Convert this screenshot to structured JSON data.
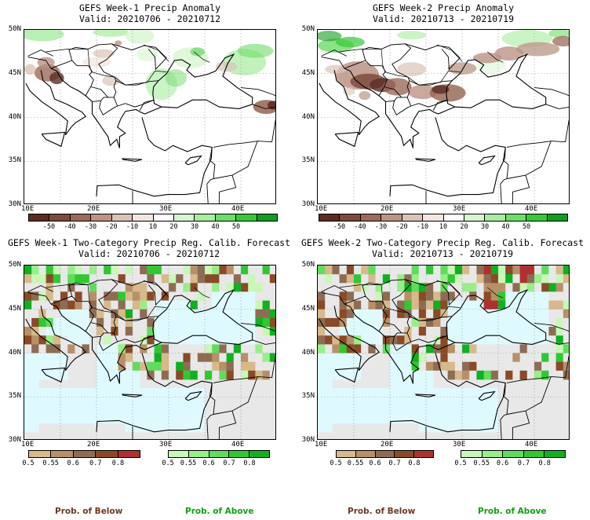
{
  "panels": [
    {
      "title": "GEFS Week-1 Precip Anomaly",
      "valid": "Valid: 20210706 - 20210712",
      "type": "anomaly"
    },
    {
      "title": "GEFS Week-2 Precip Anomaly",
      "valid": "Valid: 20210713 - 20210719",
      "type": "anomaly"
    },
    {
      "title": "GEFS Week-1 Two-Category Precip Reg. Calib. Forecast",
      "valid": "Valid: 20210706 - 20210712",
      "type": "prob"
    },
    {
      "title": "GEFS Week-2 Two-Category Precip Reg. Calib. Forecast",
      "valid": "Valid: 20210713 - 20210719",
      "type": "prob"
    }
  ],
  "axes": {
    "lat_labels": [
      "50N",
      "45N",
      "40N",
      "35N",
      "30N"
    ],
    "lon_labels": [
      "10E",
      "20E",
      "30E",
      "40E"
    ]
  },
  "anomaly_colorbar": {
    "labels": [
      "-50",
      "-40",
      "-30",
      "-20",
      "-10",
      "10",
      "20",
      "30",
      "40",
      "50"
    ],
    "colors": [
      "#5a2d22",
      "#7d4b3c",
      "#9a6b5a",
      "#bb9484",
      "#dcc3b8",
      "#f2e6e0",
      "#ffffff",
      "#d8f5d0",
      "#a8eca0",
      "#6edc68",
      "#36c838",
      "#129c22"
    ]
  },
  "prob_colorbar": {
    "below_labels": [
      "0.5",
      "0.55",
      "0.6",
      "0.7",
      "0.8"
    ],
    "above_labels": [
      "0.5",
      "0.55",
      "0.6",
      "0.7",
      "0.8"
    ],
    "below_colors": [
      "#d8b98a",
      "#b89068",
      "#8e6c54",
      "#8a4a28",
      "#b03030"
    ],
    "above_colors": [
      "#c8f7b8",
      "#98ee88",
      "#60dc5c",
      "#30c830",
      "#10b020"
    ]
  },
  "legend": {
    "below": "Prob. of Below",
    "above": "Prob. of Above",
    "below_color": "#6b3a22",
    "above_color": "#10a010"
  },
  "map_colors": {
    "sea_prob": "#dffaff",
    "land_gray": "#e8e8e8"
  }
}
